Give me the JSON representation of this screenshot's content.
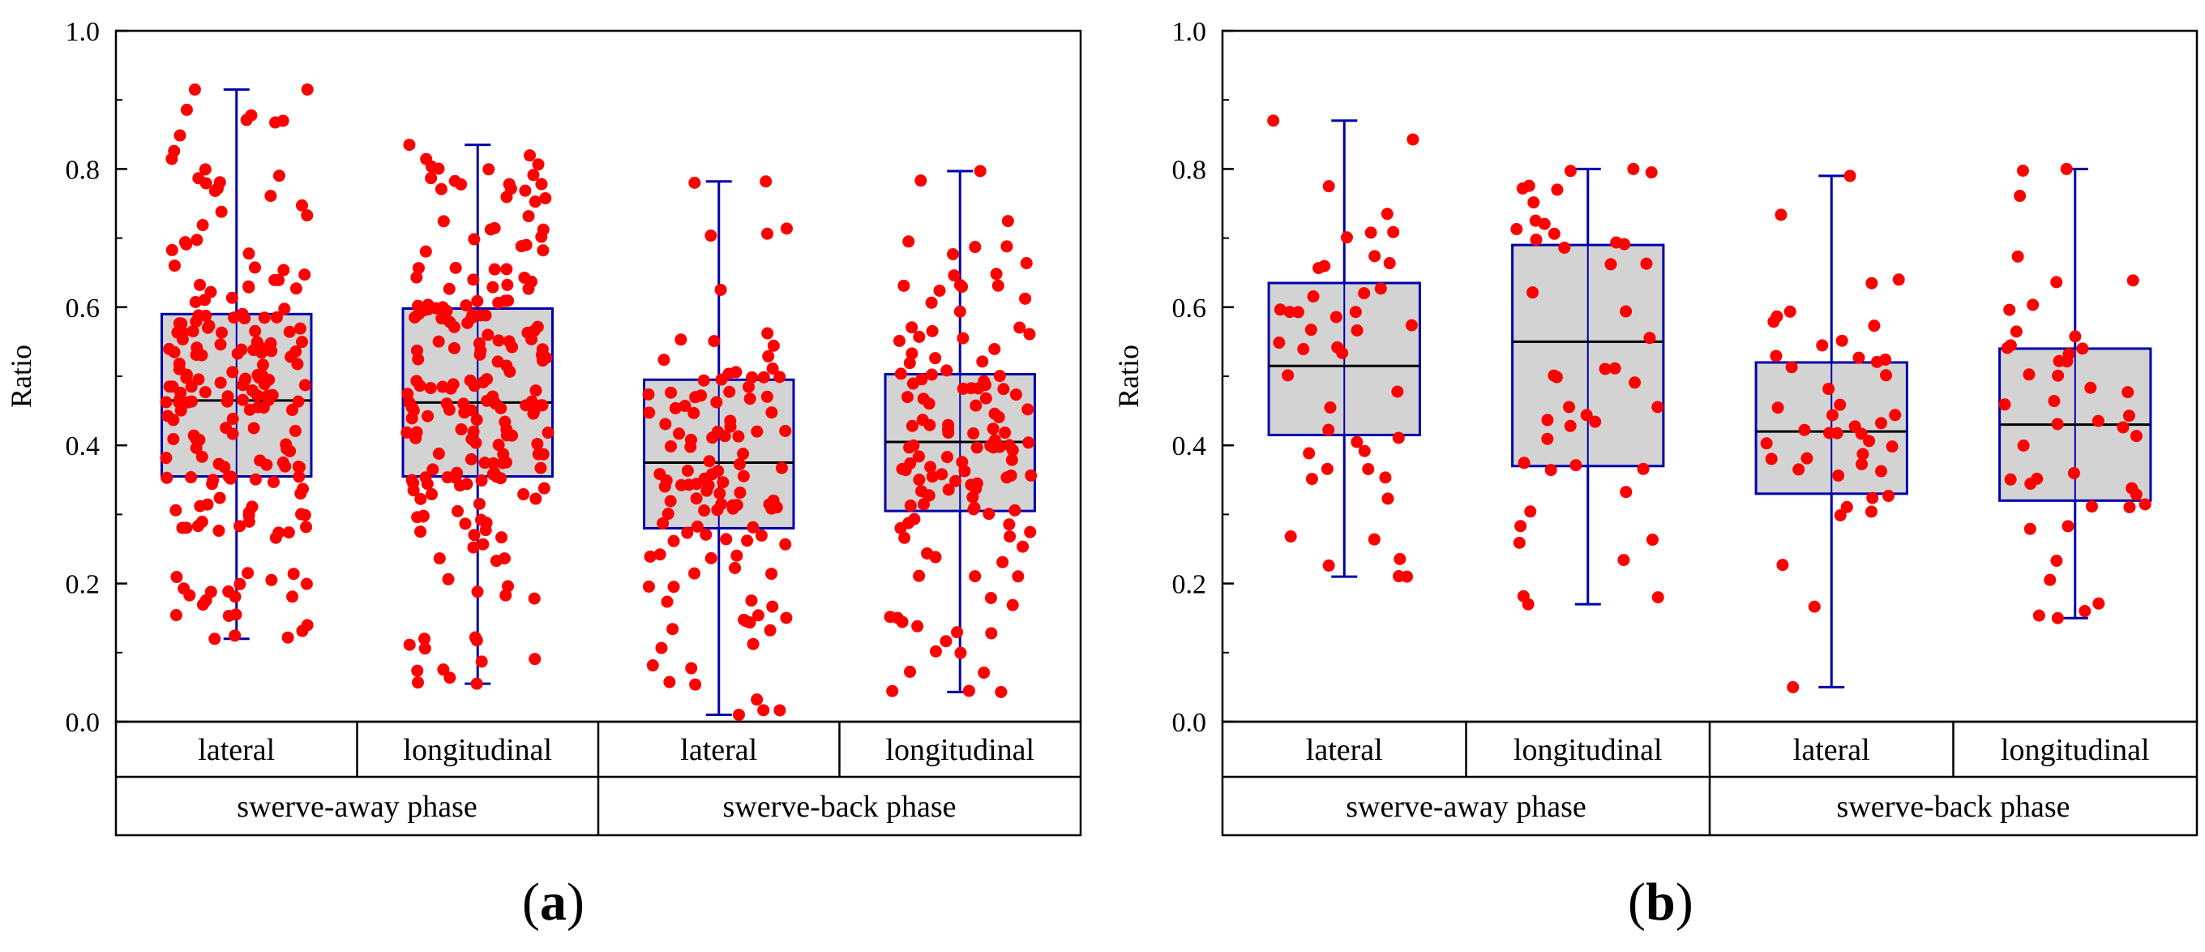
{
  "figure": {
    "panels": [
      {
        "open": "(",
        "letter": "a",
        "close": ")"
      },
      {
        "open": "(",
        "letter": "b",
        "close": ")"
      }
    ]
  },
  "colors": {
    "box_fill": "#d3d3d3",
    "box_stroke": "#0000aa",
    "median": "#000000",
    "points": "#ff0000"
  },
  "chart_data": [
    {
      "type": "box",
      "panel": "a",
      "ylabel": "Ratio",
      "xlabel": "",
      "ylim": [
        0,
        1
      ],
      "yticks": [
        "0.0",
        "0.2",
        "0.4",
        "0.6",
        "0.8",
        "1.0"
      ],
      "group_labels": [
        "swerve-away phase",
        "swerve-back phase"
      ],
      "categories": [
        "lateral",
        "longitudinal",
        "lateral",
        "longitudinal"
      ],
      "boxes": [
        {
          "group": "swerve-away phase",
          "category": "lateral",
          "whisker_low": 0.12,
          "q1": 0.355,
          "median": 0.465,
          "q3": 0.59,
          "whisker_high": 0.915,
          "n_points": 200
        },
        {
          "group": "swerve-away phase",
          "category": "longitudinal",
          "whisker_low": 0.055,
          "q1": 0.355,
          "median": 0.462,
          "q3": 0.598,
          "whisker_high": 0.835,
          "n_points": 200
        },
        {
          "group": "swerve-back phase",
          "category": "lateral",
          "whisker_low": 0.01,
          "q1": 0.28,
          "median": 0.375,
          "q3": 0.495,
          "whisker_high": 0.782,
          "n_points": 120
        },
        {
          "group": "swerve-back phase",
          "category": "longitudinal",
          "whisker_low": 0.043,
          "q1": 0.305,
          "median": 0.405,
          "q3": 0.503,
          "whisker_high": 0.797,
          "n_points": 130
        }
      ]
    },
    {
      "type": "box",
      "panel": "b",
      "ylabel": "Ratio",
      "xlabel": "",
      "ylim": [
        0,
        1
      ],
      "yticks": [
        "0.0",
        "0.2",
        "0.4",
        "0.6",
        "0.8",
        "1.0"
      ],
      "group_labels": [
        "swerve-away phase",
        "swerve-back phase"
      ],
      "categories": [
        "lateral",
        "longitudinal",
        "lateral",
        "longitudinal"
      ],
      "boxes": [
        {
          "group": "swerve-away phase",
          "category": "lateral",
          "whisker_low": 0.21,
          "q1": 0.415,
          "median": 0.515,
          "q3": 0.635,
          "whisker_high": 0.87,
          "n_points": 45
        },
        {
          "group": "swerve-away phase",
          "category": "longitudinal",
          "whisker_low": 0.17,
          "q1": 0.37,
          "median": 0.55,
          "q3": 0.69,
          "whisker_high": 0.8,
          "n_points": 45
        },
        {
          "group": "swerve-back phase",
          "category": "lateral",
          "whisker_low": 0.05,
          "q1": 0.33,
          "median": 0.42,
          "q3": 0.52,
          "whisker_high": 0.79,
          "n_points": 45
        },
        {
          "group": "swerve-back phase",
          "category": "longitudinal",
          "whisker_low": 0.15,
          "q1": 0.32,
          "median": 0.43,
          "q3": 0.54,
          "whisker_high": 0.8,
          "n_points": 45
        }
      ]
    }
  ]
}
